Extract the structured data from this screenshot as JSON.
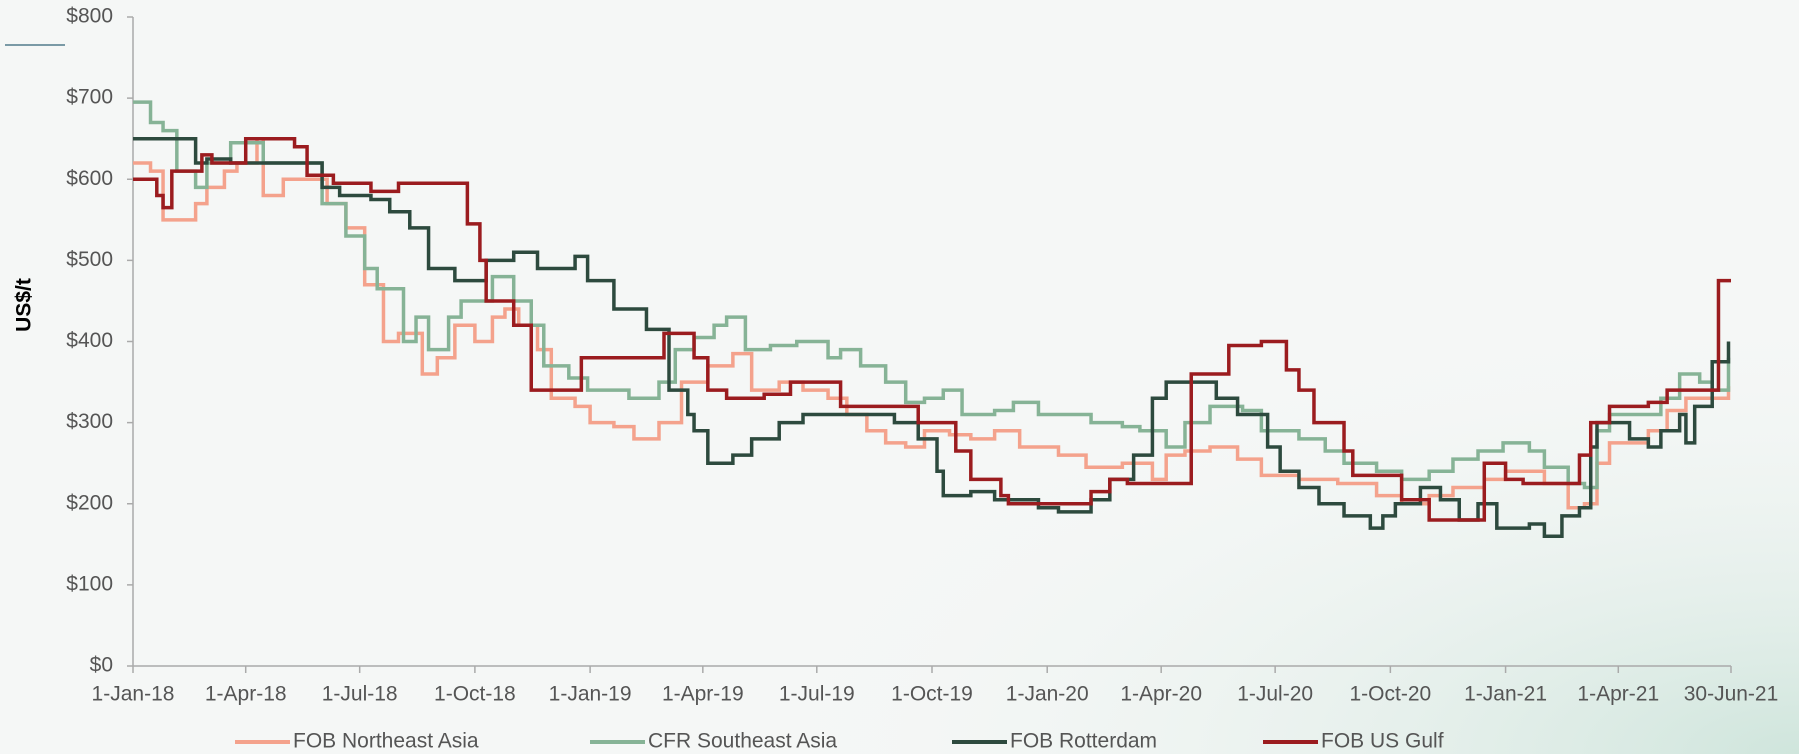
{
  "chart_data": {
    "type": "line",
    "step": true,
    "y_label": "US$/t",
    "xlim": [
      "2018-01-01",
      "2021-06-30"
    ],
    "xticks": [
      {
        "value": "2018-01-01",
        "label": "1-Jan-18"
      },
      {
        "value": "2018-04-01",
        "label": "1-Apr-18"
      },
      {
        "value": "2018-07-01",
        "label": "1-Jul-18"
      },
      {
        "value": "2018-10-01",
        "label": "1-Oct-18"
      },
      {
        "value": "2019-01-01",
        "label": "1-Jan-19"
      },
      {
        "value": "2019-04-01",
        "label": "1-Apr-19"
      },
      {
        "value": "2019-07-01",
        "label": "1-Jul-19"
      },
      {
        "value": "2019-10-01",
        "label": "1-Oct-19"
      },
      {
        "value": "2020-01-01",
        "label": "1-Jan-20"
      },
      {
        "value": "2020-04-01",
        "label": "1-Apr-20"
      },
      {
        "value": "2020-07-01",
        "label": "1-Jul-20"
      },
      {
        "value": "2020-10-01",
        "label": "1-Oct-20"
      },
      {
        "value": "2021-01-01",
        "label": "1-Jan-21"
      },
      {
        "value": "2021-04-01",
        "label": "1-Apr-21"
      },
      {
        "value": "2021-06-30",
        "label": "30-Jun-21"
      }
    ],
    "ylim": [
      0,
      800
    ],
    "yticks": [
      {
        "value": 0,
        "label": "$0"
      },
      {
        "value": 100,
        "label": "$100"
      },
      {
        "value": 200,
        "label": "$200"
      },
      {
        "value": 300,
        "label": "$300"
      },
      {
        "value": 400,
        "label": "$400"
      },
      {
        "value": 500,
        "label": "$500"
      },
      {
        "value": 600,
        "label": "$600"
      },
      {
        "value": 700,
        "label": "$700"
      },
      {
        "value": 800,
        "label": "$800"
      }
    ],
    "legend": "bottom",
    "series": [
      {
        "name": "FOB Northeast Asia",
        "color": "#f4a28c",
        "x": [
          "2018-01-01",
          "2018-01-15",
          "2018-01-25",
          "2018-02-20",
          "2018-03-01",
          "2018-03-15",
          "2018-03-25",
          "2018-04-10",
          "2018-04-15",
          "2018-05-01",
          "2018-06-05",
          "2018-06-20",
          "2018-07-05",
          "2018-07-20",
          "2018-08-01",
          "2018-08-20",
          "2018-09-01",
          "2018-09-15",
          "2018-10-01",
          "2018-10-15",
          "2018-10-25",
          "2018-11-05",
          "2018-11-20",
          "2018-12-01",
          "2018-12-20",
          "2019-01-01",
          "2019-01-20",
          "2019-02-05",
          "2019-02-25",
          "2019-03-15",
          "2019-04-05",
          "2019-04-25",
          "2019-05-10",
          "2019-06-01",
          "2019-06-20",
          "2019-07-10",
          "2019-07-25",
          "2019-08-10",
          "2019-08-25",
          "2019-09-10",
          "2019-09-25",
          "2019-10-15",
          "2019-11-01",
          "2019-11-20",
          "2019-12-10",
          "2020-01-10",
          "2020-02-01",
          "2020-03-01",
          "2020-03-25",
          "2020-04-05",
          "2020-04-20",
          "2020-05-10",
          "2020-06-01",
          "2020-06-20",
          "2020-07-20",
          "2020-08-20",
          "2020-09-20",
          "2020-10-10",
          "2020-11-01",
          "2020-11-20",
          "2020-12-15",
          "2021-01-01",
          "2021-02-01",
          "2021-02-20",
          "2021-03-05",
          "2021-03-15",
          "2021-03-25",
          "2021-04-25",
          "2021-05-10",
          "2021-05-25",
          "2021-06-10",
          "2021-06-28"
        ],
        "values": [
          620,
          610,
          550,
          570,
          590,
          610,
          620,
          650,
          580,
          600,
          570,
          540,
          470,
          400,
          410,
          360,
          380,
          420,
          400,
          430,
          440,
          420,
          390,
          330,
          320,
          300,
          295,
          280,
          300,
          350,
          370,
          385,
          340,
          350,
          340,
          330,
          310,
          290,
          275,
          270,
          290,
          285,
          280,
          290,
          270,
          260,
          245,
          250,
          230,
          260,
          265,
          270,
          255,
          235,
          230,
          225,
          210,
          200,
          210,
          220,
          230,
          240,
          225,
          195,
          200,
          250,
          275,
          290,
          315,
          330,
          330,
          345
        ]
      },
      {
        "name": "CFR Southeast Asia",
        "color": "#86b396",
        "x": [
          "2018-01-01",
          "2018-01-15",
          "2018-01-25",
          "2018-02-05",
          "2018-02-20",
          "2018-03-01",
          "2018-03-20",
          "2018-04-15",
          "2018-06-01",
          "2018-06-20",
          "2018-07-05",
          "2018-07-15",
          "2018-08-05",
          "2018-08-15",
          "2018-08-25",
          "2018-09-10",
          "2018-09-20",
          "2018-10-15",
          "2018-11-01",
          "2018-11-15",
          "2018-11-25",
          "2018-12-15",
          "2018-12-30",
          "2019-02-01",
          "2019-02-25",
          "2019-03-10",
          "2019-03-25",
          "2019-04-10",
          "2019-04-20",
          "2019-05-05",
          "2019-05-25",
          "2019-06-15",
          "2019-07-10",
          "2019-07-20",
          "2019-08-05",
          "2019-08-25",
          "2019-09-10",
          "2019-09-25",
          "2019-10-10",
          "2019-10-25",
          "2019-11-20",
          "2019-12-05",
          "2019-12-25",
          "2020-02-05",
          "2020-03-01",
          "2020-03-15",
          "2020-04-05",
          "2020-04-20",
          "2020-05-10",
          "2020-06-05",
          "2020-06-20",
          "2020-07-20",
          "2020-08-10",
          "2020-08-25",
          "2020-09-20",
          "2020-10-10",
          "2020-11-01",
          "2020-11-20",
          "2020-12-10",
          "2020-12-30",
          "2021-01-20",
          "2021-02-01",
          "2021-02-20",
          "2021-03-05",
          "2021-03-15",
          "2021-03-25",
          "2021-04-15",
          "2021-05-05",
          "2021-05-20",
          "2021-06-05",
          "2021-06-15",
          "2021-06-28"
        ],
        "values": [
          695,
          670,
          660,
          610,
          590,
          620,
          645,
          620,
          570,
          530,
          490,
          465,
          400,
          430,
          390,
          430,
          450,
          480,
          450,
          420,
          370,
          355,
          340,
          330,
          350,
          390,
          405,
          420,
          430,
          390,
          395,
          400,
          380,
          390,
          370,
          350,
          325,
          330,
          340,
          310,
          315,
          325,
          310,
          300,
          295,
          290,
          270,
          300,
          320,
          315,
          290,
          280,
          265,
          250,
          240,
          230,
          240,
          255,
          265,
          275,
          265,
          245,
          225,
          220,
          290,
          310,
          310,
          330,
          360,
          350,
          340,
          380
        ]
      },
      {
        "name": "FOB Rotterdam",
        "color": "#2d4a3e",
        "x": [
          "2018-01-01",
          "2018-02-20",
          "2018-03-01",
          "2018-03-20",
          "2018-06-01",
          "2018-06-15",
          "2018-07-10",
          "2018-07-25",
          "2018-08-10",
          "2018-08-25",
          "2018-09-15",
          "2018-10-10",
          "2018-11-01",
          "2018-11-20",
          "2018-12-20",
          "2018-12-30",
          "2019-01-20",
          "2019-02-15",
          "2019-03-05",
          "2019-03-20",
          "2019-03-25",
          "2019-04-05",
          "2019-04-25",
          "2019-05-10",
          "2019-06-01",
          "2019-06-20",
          "2019-09-01",
          "2019-09-20",
          "2019-10-05",
          "2019-10-10",
          "2019-11-01",
          "2019-11-20",
          "2019-12-25",
          "2020-01-10",
          "2020-02-05",
          "2020-02-20",
          "2020-03-10",
          "2020-03-25",
          "2020-04-05",
          "2020-05-15",
          "2020-06-01",
          "2020-06-25",
          "2020-07-05",
          "2020-07-20",
          "2020-08-05",
          "2020-08-25",
          "2020-09-15",
          "2020-09-25",
          "2020-10-05",
          "2020-10-25",
          "2020-11-10",
          "2020-11-25",
          "2020-12-10",
          "2020-12-25",
          "2021-01-20",
          "2021-02-01",
          "2021-02-15",
          "2021-03-01",
          "2021-03-10",
          "2021-03-15",
          "2021-04-10",
          "2021-04-25",
          "2021-05-05",
          "2021-05-20",
          "2021-05-25",
          "2021-06-01",
          "2021-06-15",
          "2021-06-28"
        ],
        "values": [
          650,
          620,
          625,
          620,
          590,
          580,
          575,
          560,
          540,
          490,
          475,
          500,
          510,
          490,
          505,
          475,
          440,
          415,
          340,
          310,
          290,
          250,
          260,
          280,
          300,
          310,
          300,
          280,
          240,
          210,
          215,
          205,
          195,
          190,
          205,
          230,
          260,
          330,
          350,
          330,
          310,
          270,
          240,
          220,
          200,
          185,
          170,
          185,
          200,
          220,
          205,
          180,
          200,
          170,
          175,
          160,
          185,
          195,
          270,
          300,
          280,
          270,
          290,
          310,
          275,
          320,
          375,
          400
        ]
      },
      {
        "name": "FOB US Gulf",
        "color": "#9b1c1f",
        "x": [
          "2018-01-01",
          "2018-01-20",
          "2018-01-25",
          "2018-02-01",
          "2018-02-25",
          "2018-03-05",
          "2018-04-01",
          "2018-05-10",
          "2018-05-20",
          "2018-06-10",
          "2018-07-10",
          "2018-08-01",
          "2018-09-25",
          "2018-10-05",
          "2018-10-10",
          "2018-11-01",
          "2018-11-15",
          "2018-12-25",
          "2019-03-01",
          "2019-03-25",
          "2019-04-05",
          "2019-04-20",
          "2019-05-20",
          "2019-06-10",
          "2019-07-20",
          "2019-09-20",
          "2019-10-20",
          "2019-11-01",
          "2019-11-25",
          "2019-12-01",
          "2020-02-05",
          "2020-02-20",
          "2020-03-05",
          "2020-04-25",
          "2020-05-25",
          "2020-06-20",
          "2020-07-10",
          "2020-07-20",
          "2020-08-01",
          "2020-08-25",
          "2020-09-01",
          "2020-10-10",
          "2020-11-01",
          "2020-12-15",
          "2021-01-01",
          "2021-01-15",
          "2021-03-01",
          "2021-03-10",
          "2021-03-25",
          "2021-04-25",
          "2021-05-10",
          "2021-06-20",
          "2021-06-30"
        ],
        "values": [
          600,
          580,
          565,
          610,
          630,
          620,
          650,
          640,
          605,
          595,
          585,
          595,
          545,
          500,
          450,
          420,
          340,
          380,
          410,
          380,
          340,
          330,
          335,
          350,
          320,
          300,
          265,
          230,
          210,
          200,
          215,
          230,
          225,
          360,
          395,
          400,
          365,
          340,
          300,
          265,
          235,
          205,
          180,
          250,
          230,
          225,
          260,
          300,
          320,
          325,
          340,
          475,
          475
        ]
      }
    ]
  }
}
